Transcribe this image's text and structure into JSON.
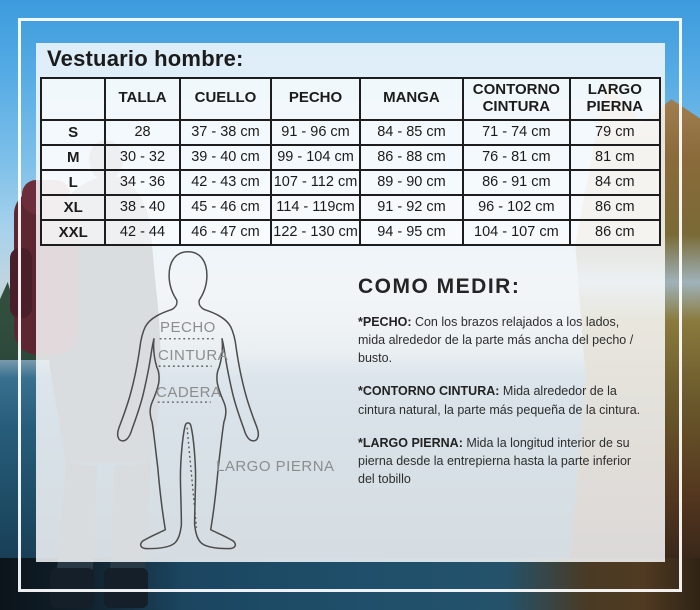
{
  "title": "Vestuario hombre:",
  "table": {
    "headers": [
      "",
      "TALLA",
      "CUELLO",
      "PECHO",
      "MANGA",
      "CONTORNO CINTURA",
      "LARGO PIERNA"
    ],
    "rows": [
      [
        "S",
        "28",
        "37 - 38 cm",
        "91 - 96 cm",
        "84 - 85 cm",
        "71 - 74 cm",
        "79 cm"
      ],
      [
        "M",
        "30 - 32",
        "39 - 40 cm",
        "99 - 104 cm",
        "86 - 88 cm",
        "76 - 81 cm",
        "81 cm"
      ],
      [
        "L",
        "34 - 36",
        "42 - 43 cm",
        "107 - 112 cm",
        "89 - 90 cm",
        "86 - 91 cm",
        "84 cm"
      ],
      [
        "XL",
        "38 - 40",
        "45 - 46 cm",
        "114 - 119cm",
        "91 - 92 cm",
        "96 - 102 cm",
        "86 cm"
      ],
      [
        "XXL",
        "42 - 44",
        "46 - 47 cm",
        "122 - 130 cm",
        "94 - 95 cm",
        "104 - 107 cm",
        "86 cm"
      ]
    ]
  },
  "diagram": {
    "labels": {
      "pecho": "PECHO",
      "cintura": "CINTURA",
      "cadera": "CADERA",
      "largo_pierna": "LARGO PIERNA"
    }
  },
  "instructions": {
    "heading": "COMO MEDIR:",
    "items": [
      {
        "term": "*PECHO:",
        "text": " Con los brazos relajados a los lados, mida alrededor de la parte más ancha del pecho / busto."
      },
      {
        "term": "*CONTORNO CINTURA:",
        "text": " Mida alrededor de la cintura natural, la parte más pequeña de la cintura."
      },
      {
        "term": "*LARGO PIERNA:",
        "text": " Mida la longitud interior de su pierna desde la entrepierna hasta la parte inferior del tobillo"
      }
    ]
  },
  "colors": {
    "sky": "#55abe4",
    "water": "#1d4a63",
    "autumn_hill": "#8a6b3a",
    "backpack": "#5c2731",
    "frame": "#ffffff",
    "panel": "rgba(250,252,253,0.84)",
    "table_border": "#1d1d1d",
    "label_gray": "#8d8d8d"
  }
}
